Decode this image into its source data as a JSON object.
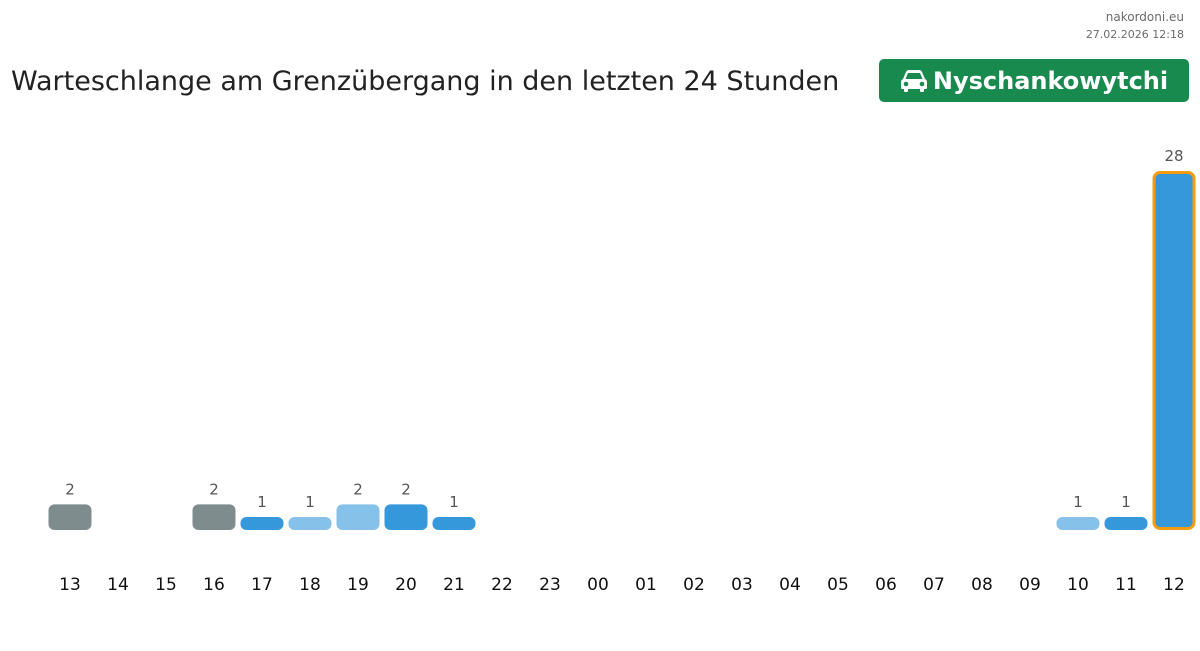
{
  "site": {
    "domain": "nakordoni.eu",
    "timestamp": "27.02.2026 12:18"
  },
  "header": {
    "title": "Warteschlange am Grenzübergang in den letzten 24 Stunden",
    "crossing_name": "Nyschankowytchi",
    "crossing_icon": "car-icon",
    "badge_color": "#188a4e"
  },
  "chart_data": {
    "type": "bar",
    "title": "Warteschlange am Grenzübergang in den letzten 24 Stunden",
    "xlabel": "",
    "ylabel": "",
    "ylim": [
      0,
      28
    ],
    "grid": false,
    "legend": "none",
    "categories": [
      "13",
      "14",
      "15",
      "16",
      "17",
      "18",
      "19",
      "20",
      "21",
      "22",
      "23",
      "00",
      "01",
      "02",
      "03",
      "04",
      "05",
      "06",
      "07",
      "08",
      "09",
      "10",
      "11",
      "12"
    ],
    "values": [
      2,
      0,
      0,
      2,
      1,
      1,
      2,
      2,
      1,
      0,
      0,
      0,
      0,
      0,
      0,
      0,
      0,
      0,
      0,
      0,
      0,
      1,
      1,
      28
    ],
    "bar_colors": [
      "#7f8c8d",
      null,
      null,
      "#7f8c8d",
      "#3498db",
      "#85c1e9",
      "#85c1e9",
      "#3498db",
      "#3498db",
      null,
      null,
      null,
      null,
      null,
      null,
      null,
      null,
      null,
      null,
      null,
      null,
      "#85c1e9",
      "#3498db",
      "#3498db"
    ],
    "highlighted_category": "12",
    "highlight_color": "#f39c12"
  }
}
